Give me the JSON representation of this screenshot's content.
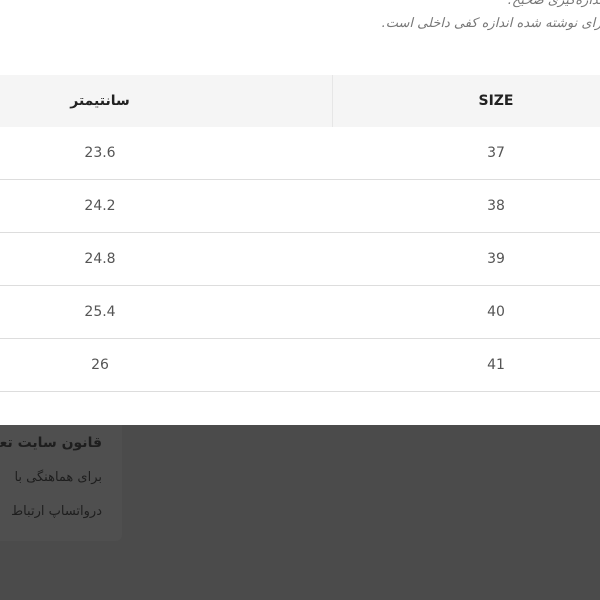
{
  "intro": {
    "line1": "اندازه‌گیری صحیح.",
    "line2": "برای نوشته شده اندازه کفی داخلی است."
  },
  "table": {
    "headers": {
      "cm": "سانتیمتر",
      "size": "SIZE"
    },
    "rows": [
      {
        "cm": "23.6",
        "size": "37"
      },
      {
        "cm": "24.2",
        "size": "38"
      },
      {
        "cm": "24.8",
        "size": "39"
      },
      {
        "cm": "25.4",
        "size": "40"
      },
      {
        "cm": "26",
        "size": "41"
      }
    ]
  },
  "popup": {
    "title": "قانون سایت تعویض",
    "line1": "برای هماهنگی با",
    "line2": "درواتساپ ارتباط"
  },
  "colors": {
    "overlay": "#4b4b4b",
    "header_bg": "#f5f5f5"
  }
}
